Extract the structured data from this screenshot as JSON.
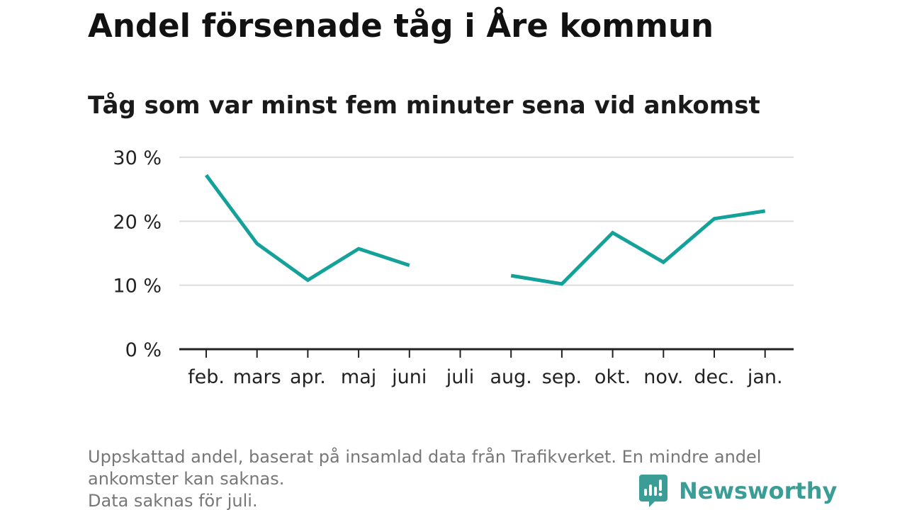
{
  "title": "Andel försenade tåg i Åre kommun",
  "subtitle": "Tåg som var minst fem minuter sena vid ankomst",
  "footnote": {
    "line1": "Uppskattad andel, baserat på insamlad data från Trafikverket. En mindre andel",
    "line2": "ankomster kan saknas.",
    "line3": "Data saknas för juli."
  },
  "brand": {
    "name": "Newsworthy",
    "icon": "newsworthy-logo-icon",
    "color": "#3a9e96"
  },
  "colors": {
    "line": "#14a19a",
    "grid": "#dddddd",
    "axis": "#222222"
  },
  "chart_data": {
    "type": "line",
    "categories": [
      "feb.",
      "mars",
      "apr.",
      "maj",
      "juni",
      "juli",
      "aug.",
      "sep.",
      "okt.",
      "nov.",
      "dec.",
      "jan."
    ],
    "series": [
      {
        "values": [
          27.2,
          16.5,
          10.8,
          15.7,
          13.1,
          null,
          11.5,
          10.2,
          18.2,
          13.6,
          20.4,
          21.6
        ]
      }
    ],
    "ylim": [
      0,
      30
    ],
    "yticks": [
      0,
      10,
      20,
      30
    ],
    "ytick_labels": [
      "0 %",
      "10 %",
      "20 %",
      "30 %"
    ],
    "grid": true,
    "xlabel": "",
    "ylabel": ""
  }
}
